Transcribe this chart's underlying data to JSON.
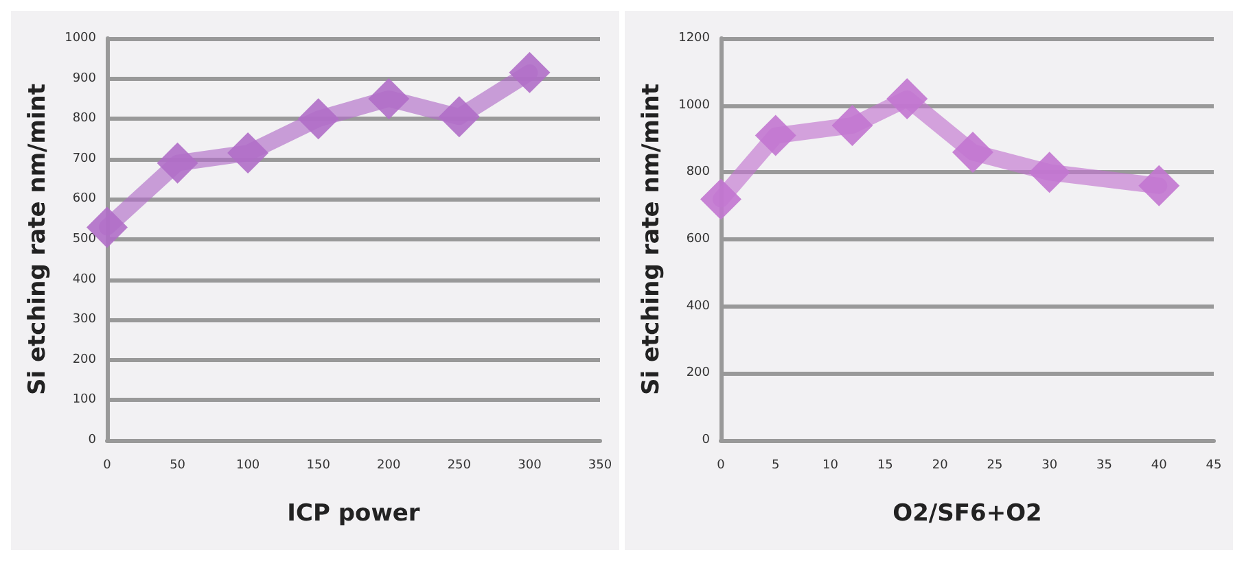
{
  "chart_data": [
    {
      "type": "line",
      "xlabel": "ICP power",
      "ylabel": "Si etching rate nm/mint",
      "x": [
        0,
        50,
        100,
        150,
        200,
        250,
        300
      ],
      "series": [
        {
          "color": "#b06ec8",
          "values": [
            530,
            690,
            715,
            800,
            850,
            805,
            915
          ]
        }
      ],
      "xlim": [
        0,
        350
      ],
      "xticks": [
        0,
        50,
        100,
        150,
        200,
        250,
        300,
        350
      ],
      "ylim": [
        0,
        1000
      ],
      "yticks": [
        0,
        100,
        200,
        300,
        400,
        500,
        600,
        700,
        800,
        900,
        1000
      ],
      "grid": "y",
      "marker": "diamond",
      "line_style": "solid"
    },
    {
      "type": "line",
      "xlabel": "O2/SF6+O2",
      "ylabel": "Si etching rate nm/mint",
      "x": [
        0,
        5,
        12,
        17,
        23,
        30,
        40
      ],
      "series": [
        {
          "color": "#c276d0",
          "values": [
            720,
            910,
            940,
            1020,
            860,
            800,
            760
          ]
        }
      ],
      "xlim": [
        0,
        45
      ],
      "xticks": [
        0,
        5,
        10,
        15,
        20,
        25,
        30,
        35,
        40,
        45
      ],
      "ylim": [
        0,
        1200
      ],
      "yticks": [
        0,
        200,
        400,
        600,
        800,
        1000,
        1200
      ],
      "grid": "y",
      "marker": "diamond",
      "line_style": "solid"
    }
  ]
}
